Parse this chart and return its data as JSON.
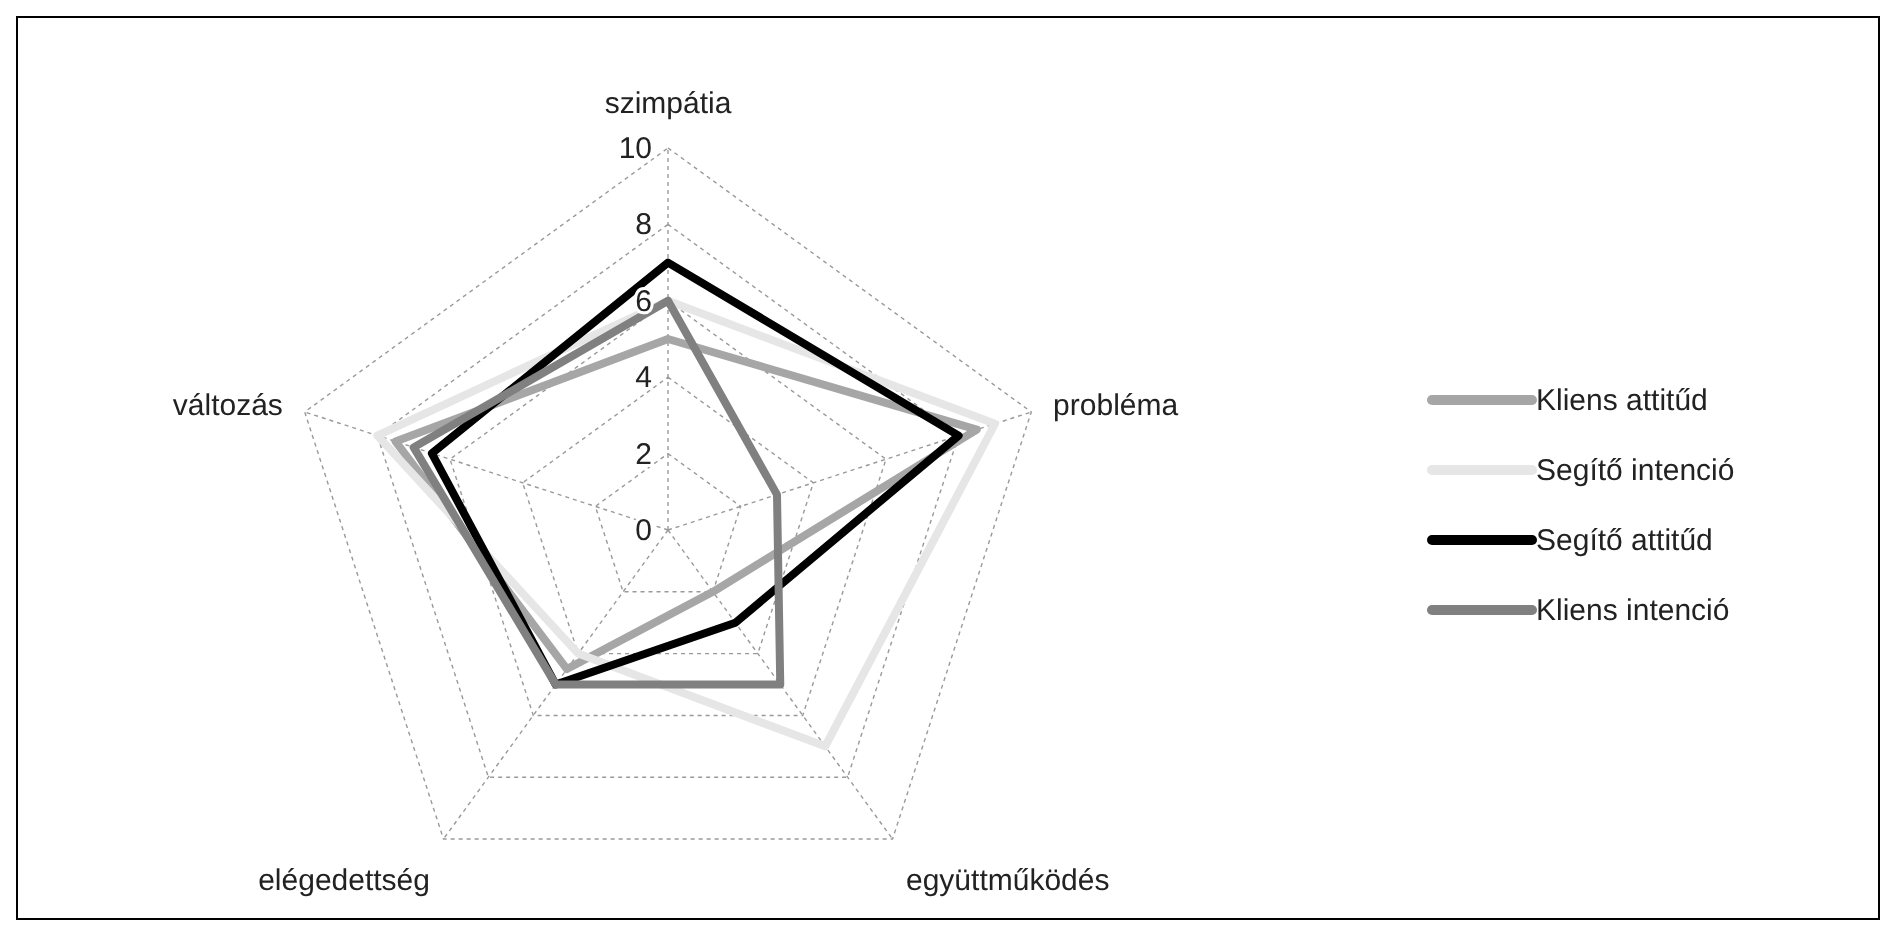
{
  "chart_data": {
    "type": "radar",
    "categories": [
      "szimpátia",
      "probléma",
      "együttműködés",
      "elégedettség",
      "változás"
    ],
    "series": [
      {
        "name": "Kliens attitűd",
        "color": "#a6a6a6",
        "values": [
          5,
          8.5,
          2,
          4.5,
          7.5
        ]
      },
      {
        "name": "Segítő intenció",
        "color": "#e6e6e6",
        "values": [
          6,
          9,
          7,
          4,
          8
        ]
      },
      {
        "name": "Segítő attitűd",
        "color": "#000000",
        "values": [
          7,
          8,
          3,
          5,
          6.5
        ]
      },
      {
        "name": "Kliens intenció",
        "color": "#808080",
        "values": [
          6,
          3,
          5,
          5,
          7
        ]
      }
    ],
    "ylim": [
      0,
      10
    ],
    "yticks": [
      0,
      2,
      4,
      6,
      8,
      10
    ],
    "grid": true,
    "legend": "right"
  }
}
